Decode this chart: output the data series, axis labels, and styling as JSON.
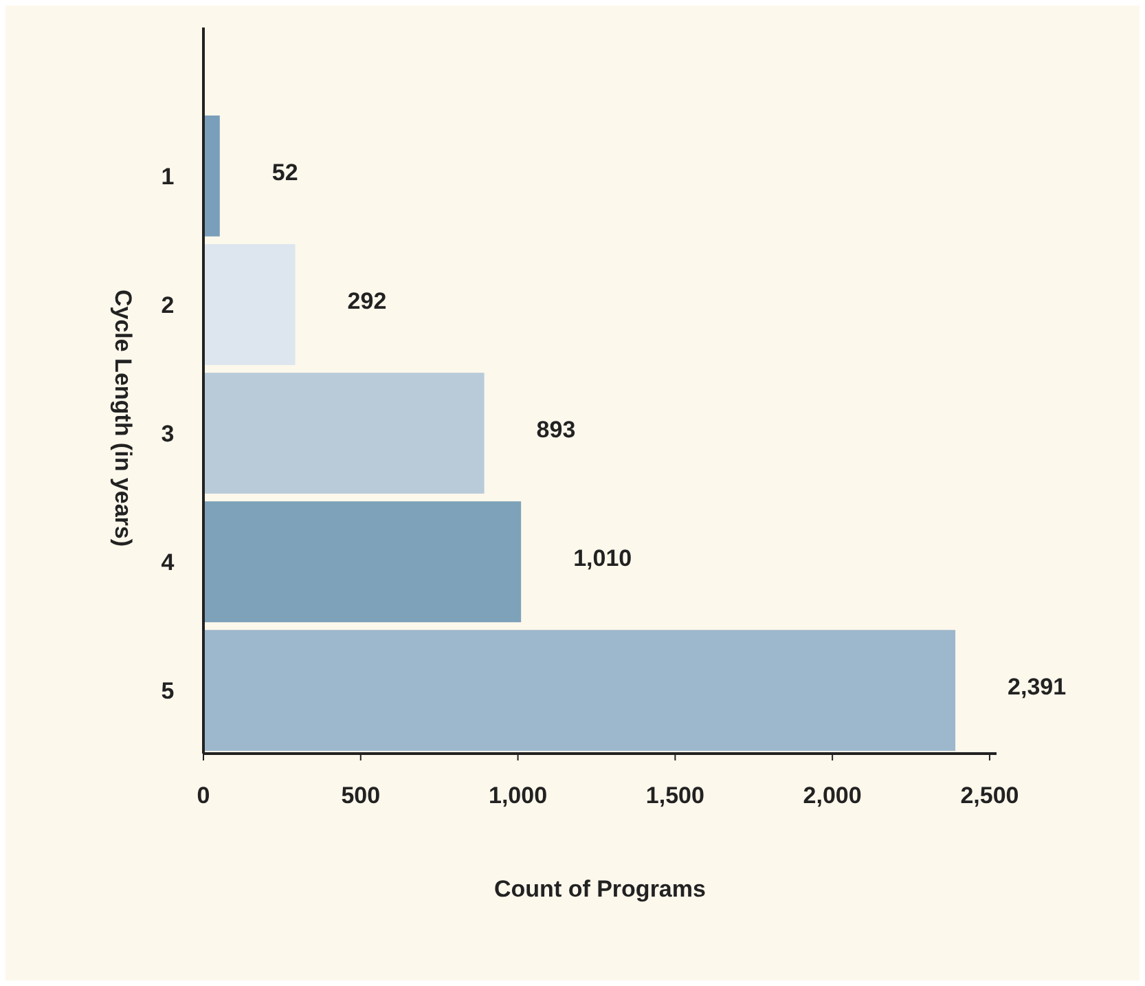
{
  "chart_data": {
    "type": "bar",
    "orientation": "horizontal",
    "xlabel": "Count of Programs",
    "ylabel": "Cycle Length (in years)",
    "categories": [
      "1",
      "2",
      "3",
      "4",
      "5"
    ],
    "values": [
      52,
      292,
      893,
      1010,
      2391
    ],
    "value_labels": [
      "52",
      "292",
      "893",
      "1,010",
      "2,391"
    ],
    "colors": [
      "#7a9fbb",
      "#dde6ee",
      "#b9cbd9",
      "#7ea2b9",
      "#9db8cc"
    ],
    "xlim": [
      0,
      2522
    ],
    "xticks": [
      0,
      500,
      {
        "value": 1000,
        "label": "1,000"
      },
      {
        "value": 1500,
        "label": "1,500"
      },
      {
        "value": 2000,
        "label": "2,000"
      },
      {
        "value": 2500,
        "label": "2,500"
      }
    ],
    "grid": false
  }
}
